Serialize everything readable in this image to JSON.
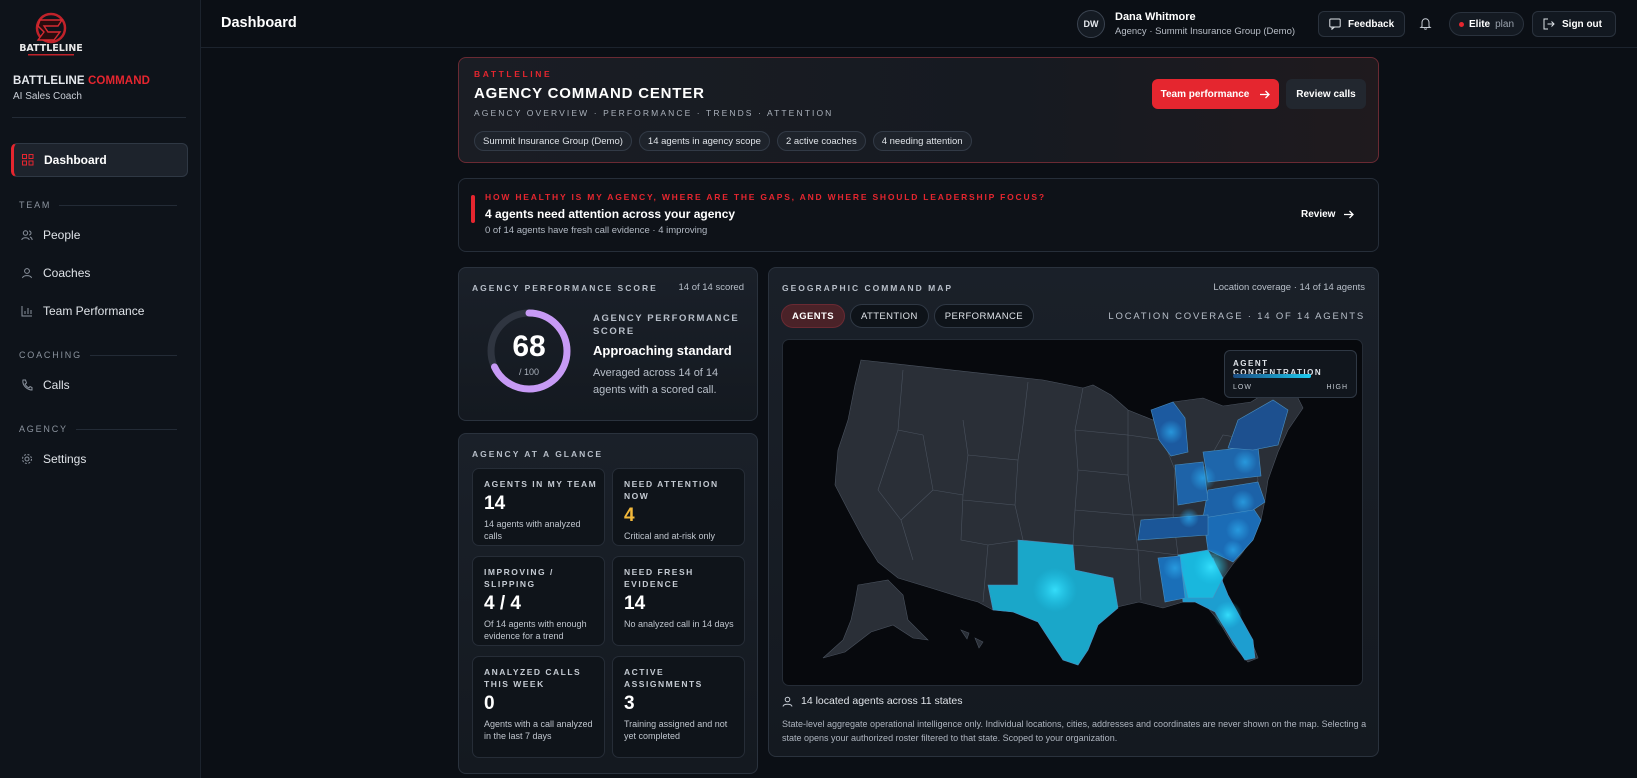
{
  "sidebar": {
    "brand_main": "BATTLELINE",
    "brand_accent": "COMMAND",
    "brand_sub": "AI Sales Coach",
    "nav_dashboard": "Dashboard",
    "section_team": "TEAM",
    "nav_people": "People",
    "nav_coaches": "Coaches",
    "nav_team_performance": "Team Performance",
    "section_coaching": "COACHING",
    "nav_calls": "Calls",
    "section_agency": "AGENCY",
    "nav_settings": "Settings"
  },
  "header": {
    "title": "Dashboard",
    "avatar_initials": "DW",
    "user_name": "Dana Whitmore",
    "user_org": "Agency · Summit Insurance Group (Demo)",
    "feedback_label": "Feedback",
    "plan_name": "Elite",
    "plan_suffix": "plan",
    "signout_label": "Sign out"
  },
  "hero": {
    "eyebrow": "BATTLELINE",
    "title": "AGENCY COMMAND CENTER",
    "subtitle": "AGENCY OVERVIEW · PERFORMANCE · TRENDS · ATTENTION",
    "chips": [
      "Summit Insurance Group (Demo)",
      "14 agents in agency scope",
      "2 active coaches",
      "4 needing attention"
    ],
    "primary_button": "Team performance",
    "secondary_button": "Review calls"
  },
  "banner": {
    "question": "HOW HEALTHY IS MY AGENCY, WHERE ARE THE GAPS, AND WHERE SHOULD LEADERSHIP FOCUS?",
    "title": "4 agents need attention across your agency",
    "subtitle": "0 of 14 agents have fresh call evidence · 4 improving",
    "action": "Review"
  },
  "score": {
    "label": "AGENCY PERFORMANCE SCORE",
    "scored": "14 of 14 scored",
    "value": "68",
    "max_text": "/ 100",
    "fraction": 0.68,
    "heading": "AGENCY PERFORMANCE SCORE",
    "status": "Approaching standard",
    "description": "Averaged across 14 of 14 agents with a scored call."
  },
  "glance": {
    "label": "AGENCY AT A GLANCE",
    "stats": [
      {
        "label": "AGENTS IN MY TEAM",
        "value": "14",
        "desc": "14 agents with analyzed calls"
      },
      {
        "label": "NEED ATTENTION NOW",
        "value": "4",
        "desc": "Critical and at-risk only"
      },
      {
        "label": "IMPROVING / SLIPPING",
        "value": "4 / 4",
        "desc": "Of 14 agents with enough evidence for a trend"
      },
      {
        "label": "NEED FRESH EVIDENCE",
        "value": "14",
        "desc": "No analyzed call in 14 days"
      },
      {
        "label": "ANALYZED CALLS THIS WEEK",
        "value": "0",
        "desc": "Agents with a call analyzed in the last 7 days"
      },
      {
        "label": "ACTIVE ASSIGNMENTS",
        "value": "3",
        "desc": "Training assigned and not yet completed"
      }
    ]
  },
  "map": {
    "label": "GEOGRAPHIC COMMAND MAP",
    "meta": "Location coverage · 14 of 14 agents",
    "tabs": [
      "AGENTS",
      "ATTENTION",
      "PERFORMANCE"
    ],
    "coverage": "LOCATION COVERAGE · 14 OF 14 AGENTS",
    "legend_title": "AGENT CONCENTRATION",
    "legend_low": "LOW",
    "legend_high": "HIGH",
    "footer_count": "14 located agents across 11 states",
    "footer_note": "State-level aggregate operational intelligence only. Individual locations, cities, addresses and coordinates are never shown on the map. Selecting a state opens your authorized roster filtered to that state. Scoped to your organization."
  },
  "colors": {
    "accent": "#e5262f",
    "amber": "#f2b83b",
    "gauge": "#c79af5",
    "map_high": "#1ecbef",
    "map_low": "#1a4a80"
  }
}
